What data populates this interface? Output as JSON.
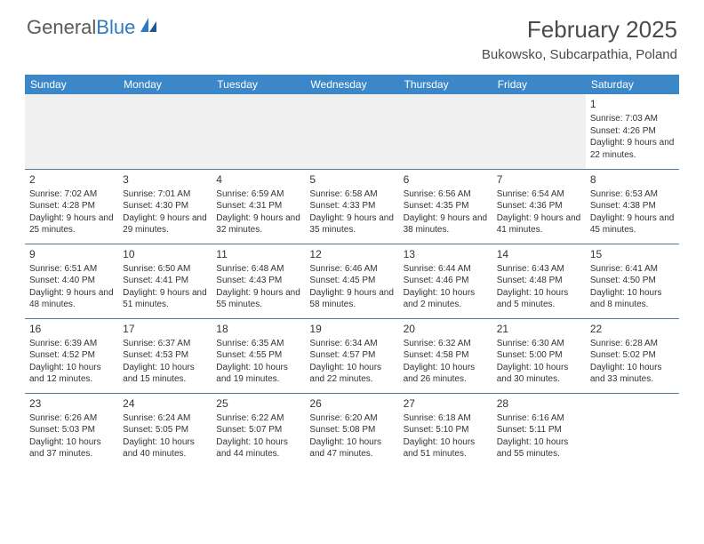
{
  "logo": {
    "text1": "General",
    "text2": "Blue"
  },
  "title": "February 2025",
  "location": "Bukowsko, Subcarpathia, Poland",
  "colors": {
    "header_bg": "#3b87c8",
    "header_text": "#ffffff",
    "border": "#5a7a9a",
    "text": "#333333",
    "logo_gray": "#5a5a5a",
    "logo_blue": "#2f7bbf"
  },
  "daynames": [
    "Sunday",
    "Monday",
    "Tuesday",
    "Wednesday",
    "Thursday",
    "Friday",
    "Saturday"
  ],
  "weeks": [
    [
      null,
      null,
      null,
      null,
      null,
      null,
      {
        "n": "1",
        "sr": "Sunrise: 7:03 AM",
        "ss": "Sunset: 4:26 PM",
        "dl": "Daylight: 9 hours and 22 minutes."
      }
    ],
    [
      {
        "n": "2",
        "sr": "Sunrise: 7:02 AM",
        "ss": "Sunset: 4:28 PM",
        "dl": "Daylight: 9 hours and 25 minutes."
      },
      {
        "n": "3",
        "sr": "Sunrise: 7:01 AM",
        "ss": "Sunset: 4:30 PM",
        "dl": "Daylight: 9 hours and 29 minutes."
      },
      {
        "n": "4",
        "sr": "Sunrise: 6:59 AM",
        "ss": "Sunset: 4:31 PM",
        "dl": "Daylight: 9 hours and 32 minutes."
      },
      {
        "n": "5",
        "sr": "Sunrise: 6:58 AM",
        "ss": "Sunset: 4:33 PM",
        "dl": "Daylight: 9 hours and 35 minutes."
      },
      {
        "n": "6",
        "sr": "Sunrise: 6:56 AM",
        "ss": "Sunset: 4:35 PM",
        "dl": "Daylight: 9 hours and 38 minutes."
      },
      {
        "n": "7",
        "sr": "Sunrise: 6:54 AM",
        "ss": "Sunset: 4:36 PM",
        "dl": "Daylight: 9 hours and 41 minutes."
      },
      {
        "n": "8",
        "sr": "Sunrise: 6:53 AM",
        "ss": "Sunset: 4:38 PM",
        "dl": "Daylight: 9 hours and 45 minutes."
      }
    ],
    [
      {
        "n": "9",
        "sr": "Sunrise: 6:51 AM",
        "ss": "Sunset: 4:40 PM",
        "dl": "Daylight: 9 hours and 48 minutes."
      },
      {
        "n": "10",
        "sr": "Sunrise: 6:50 AM",
        "ss": "Sunset: 4:41 PM",
        "dl": "Daylight: 9 hours and 51 minutes."
      },
      {
        "n": "11",
        "sr": "Sunrise: 6:48 AM",
        "ss": "Sunset: 4:43 PM",
        "dl": "Daylight: 9 hours and 55 minutes."
      },
      {
        "n": "12",
        "sr": "Sunrise: 6:46 AM",
        "ss": "Sunset: 4:45 PM",
        "dl": "Daylight: 9 hours and 58 minutes."
      },
      {
        "n": "13",
        "sr": "Sunrise: 6:44 AM",
        "ss": "Sunset: 4:46 PM",
        "dl": "Daylight: 10 hours and 2 minutes."
      },
      {
        "n": "14",
        "sr": "Sunrise: 6:43 AM",
        "ss": "Sunset: 4:48 PM",
        "dl": "Daylight: 10 hours and 5 minutes."
      },
      {
        "n": "15",
        "sr": "Sunrise: 6:41 AM",
        "ss": "Sunset: 4:50 PM",
        "dl": "Daylight: 10 hours and 8 minutes."
      }
    ],
    [
      {
        "n": "16",
        "sr": "Sunrise: 6:39 AM",
        "ss": "Sunset: 4:52 PM",
        "dl": "Daylight: 10 hours and 12 minutes."
      },
      {
        "n": "17",
        "sr": "Sunrise: 6:37 AM",
        "ss": "Sunset: 4:53 PM",
        "dl": "Daylight: 10 hours and 15 minutes."
      },
      {
        "n": "18",
        "sr": "Sunrise: 6:35 AM",
        "ss": "Sunset: 4:55 PM",
        "dl": "Daylight: 10 hours and 19 minutes."
      },
      {
        "n": "19",
        "sr": "Sunrise: 6:34 AM",
        "ss": "Sunset: 4:57 PM",
        "dl": "Daylight: 10 hours and 22 minutes."
      },
      {
        "n": "20",
        "sr": "Sunrise: 6:32 AM",
        "ss": "Sunset: 4:58 PM",
        "dl": "Daylight: 10 hours and 26 minutes."
      },
      {
        "n": "21",
        "sr": "Sunrise: 6:30 AM",
        "ss": "Sunset: 5:00 PM",
        "dl": "Daylight: 10 hours and 30 minutes."
      },
      {
        "n": "22",
        "sr": "Sunrise: 6:28 AM",
        "ss": "Sunset: 5:02 PM",
        "dl": "Daylight: 10 hours and 33 minutes."
      }
    ],
    [
      {
        "n": "23",
        "sr": "Sunrise: 6:26 AM",
        "ss": "Sunset: 5:03 PM",
        "dl": "Daylight: 10 hours and 37 minutes."
      },
      {
        "n": "24",
        "sr": "Sunrise: 6:24 AM",
        "ss": "Sunset: 5:05 PM",
        "dl": "Daylight: 10 hours and 40 minutes."
      },
      {
        "n": "25",
        "sr": "Sunrise: 6:22 AM",
        "ss": "Sunset: 5:07 PM",
        "dl": "Daylight: 10 hours and 44 minutes."
      },
      {
        "n": "26",
        "sr": "Sunrise: 6:20 AM",
        "ss": "Sunset: 5:08 PM",
        "dl": "Daylight: 10 hours and 47 minutes."
      },
      {
        "n": "27",
        "sr": "Sunrise: 6:18 AM",
        "ss": "Sunset: 5:10 PM",
        "dl": "Daylight: 10 hours and 51 minutes."
      },
      {
        "n": "28",
        "sr": "Sunrise: 6:16 AM",
        "ss": "Sunset: 5:11 PM",
        "dl": "Daylight: 10 hours and 55 minutes."
      },
      null
    ]
  ]
}
